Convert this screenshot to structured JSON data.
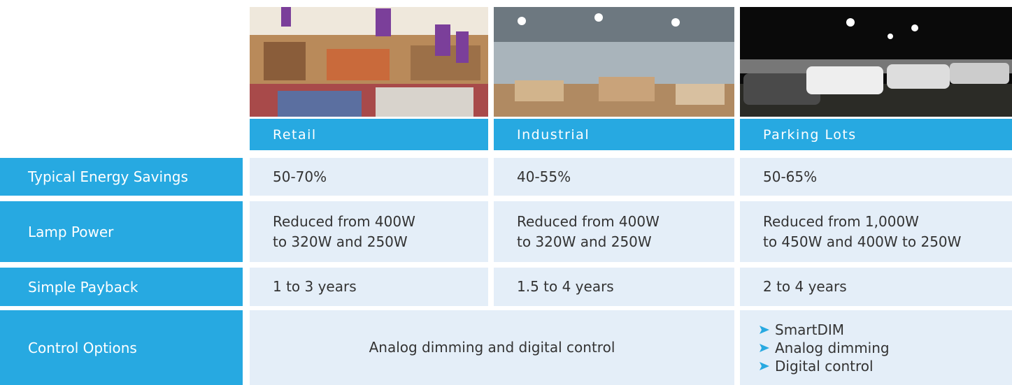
{
  "columns": [
    "Retail",
    "Industrial",
    "Parking Lots"
  ],
  "rows": [
    {
      "label": "Typical Energy Savings",
      "cells": [
        "50-70%",
        "40-55%",
        "50-65%"
      ]
    },
    {
      "label": "Lamp Power",
      "cells": [
        [
          "Reduced from 400W",
          "to 320W and 250W"
        ],
        [
          "Reduced from 400W",
          "to 320W and 250W"
        ],
        [
          "Reduced from 1,000W",
          "to 450W and 400W to 250W"
        ]
      ]
    },
    {
      "label": "Simple Payback",
      "cells": [
        "1 to 3 years",
        "1.5 to 4 years",
        "2 to 4 years"
      ]
    },
    {
      "label": "Control Options",
      "cells": [
        "Analog dimming and digital control",
        [
          "SmartDIM",
          "Analog dimming",
          "Digital control"
        ]
      ]
    }
  ]
}
